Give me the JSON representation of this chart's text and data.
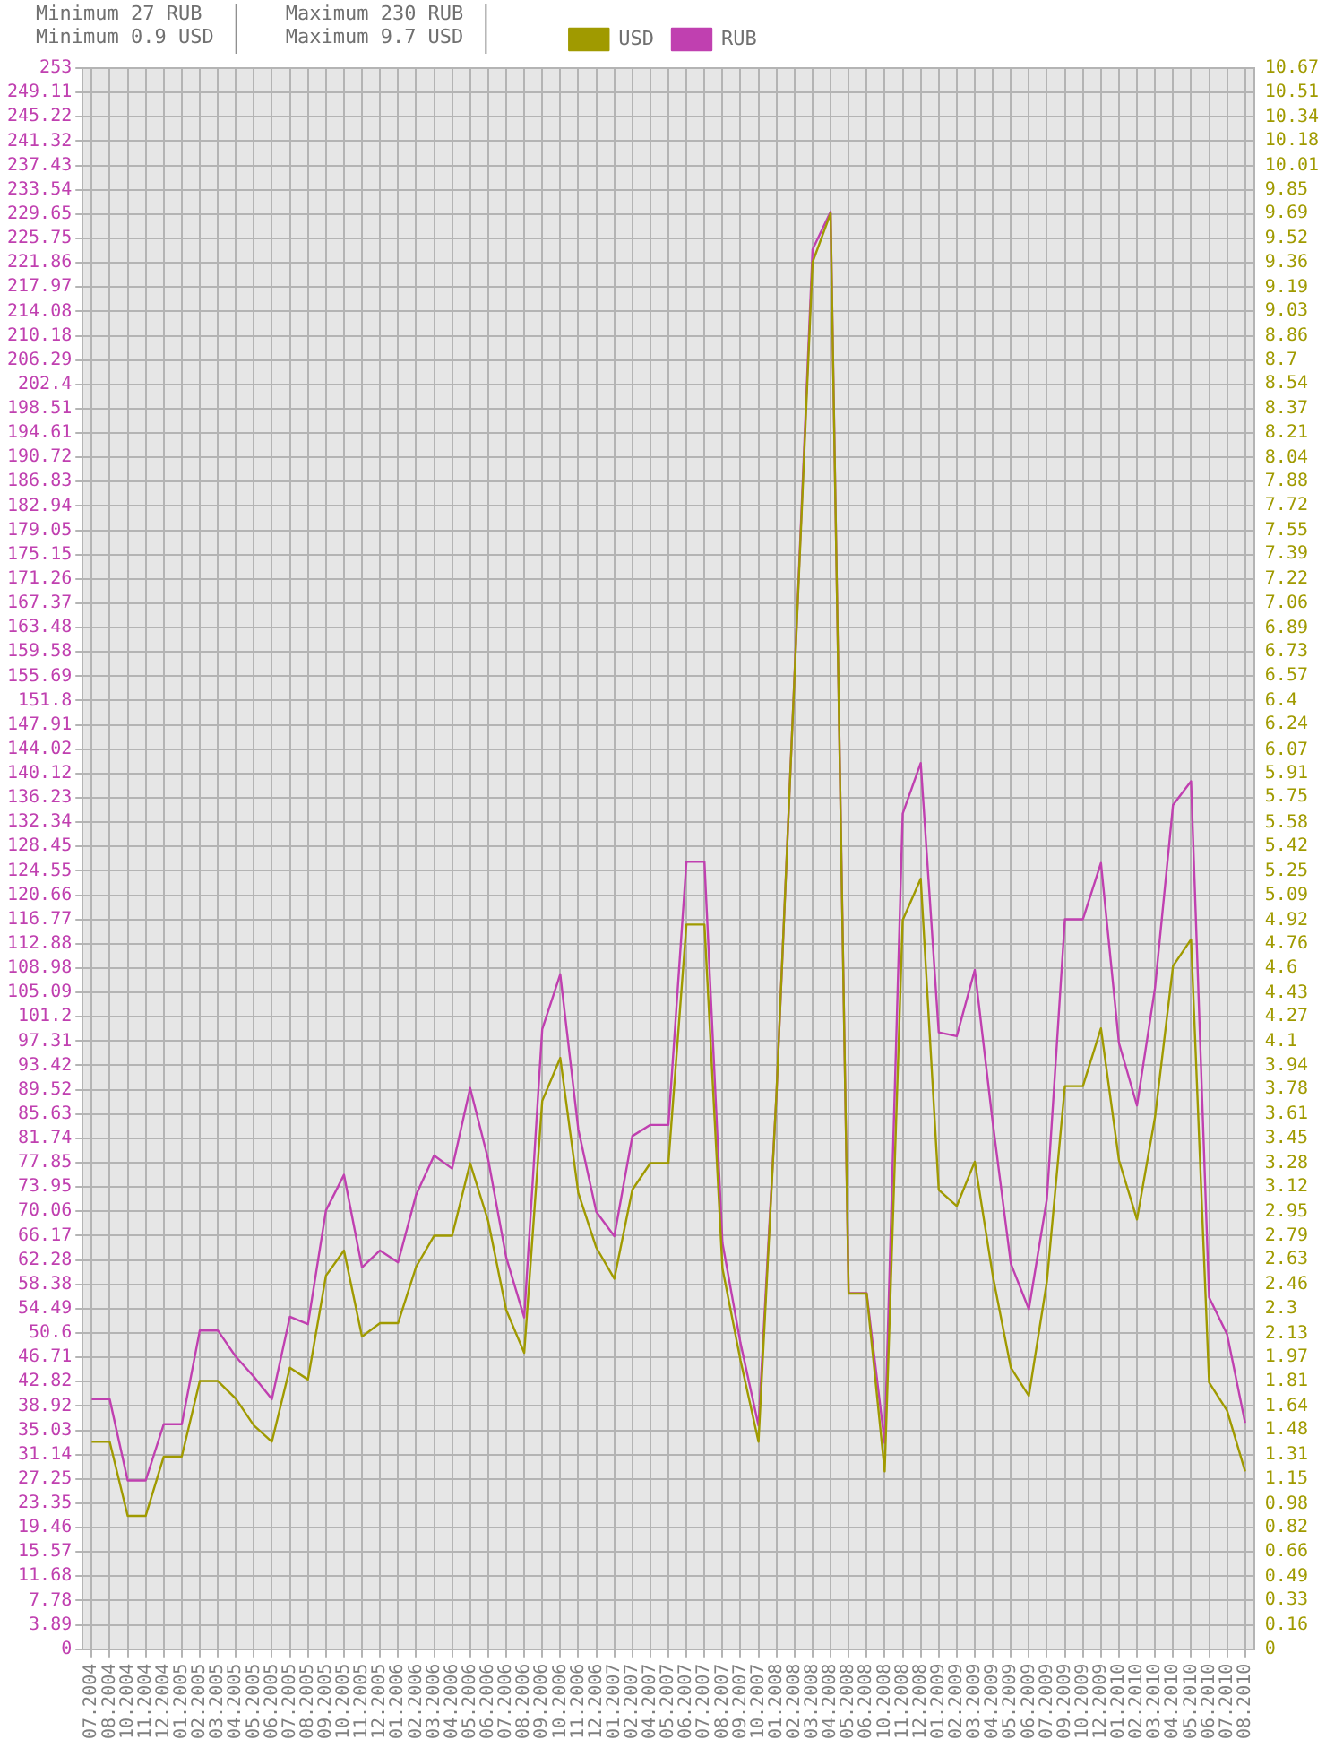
{
  "chart_data": {
    "type": "line",
    "annotations": [
      "Minimum 27 RUB",
      "Minimum 0.9 USD",
      "Maximum 230 RUB",
      "Maximum 9.7 USD"
    ],
    "categories": [
      "07.2004",
      "08.2004",
      "10.2004",
      "11.2004",
      "12.2004",
      "01.2005",
      "02.2005",
      "03.2005",
      "04.2005",
      "05.2005",
      "06.2005",
      "07.2005",
      "08.2005",
      "09.2005",
      "10.2005",
      "11.2005",
      "12.2005",
      "01.2006",
      "02.2006",
      "03.2006",
      "04.2006",
      "05.2006",
      "06.2006",
      "07.2006",
      "08.2006",
      "09.2006",
      "10.2006",
      "11.2006",
      "12.2006",
      "01.2007",
      "02.2007",
      "04.2007",
      "05.2007",
      "06.2007",
      "07.2007",
      "08.2007",
      "09.2007",
      "10.2007",
      "01.2008",
      "02.2008",
      "03.2008",
      "04.2008",
      "05.2008",
      "06.2008",
      "10.2008",
      "11.2008",
      "12.2008",
      "01.2009",
      "02.2009",
      "03.2009",
      "04.2009",
      "05.2009",
      "06.2009",
      "07.2009",
      "09.2009",
      "10.2009",
      "12.2009",
      "01.2010",
      "02.2010",
      "03.2010",
      "04.2010",
      "05.2010",
      "06.2010",
      "07.2010",
      "08.2010"
    ],
    "series": [
      {
        "name": "RUB",
        "color": "#c040b0",
        "values": [
          40,
          40,
          27,
          27,
          36,
          36,
          51,
          51,
          46.8,
          43.6,
          40,
          53.2,
          52,
          70.2,
          75.9,
          61.1,
          63.8,
          61.9,
          72.7,
          79,
          76.9,
          89.8,
          78.4,
          62.7,
          53.1,
          99.2,
          108,
          83.2,
          70,
          66.1,
          82.1,
          83.9,
          83.9,
          126,
          126,
          65,
          49,
          35.8,
          89,
          156,
          224,
          230,
          57,
          57,
          33,
          133.7,
          141.8,
          98.7,
          98.1,
          108.7,
          84.2,
          61.7,
          54.4,
          72,
          116.8,
          116.8,
          125.8,
          97,
          87,
          105.8,
          135.1,
          138.9,
          56.3,
          50.4,
          36.2
        ]
      },
      {
        "name": "USD",
        "color": "#a09a00",
        "axis": "y2",
        "values": [
          1.4,
          1.4,
          0.9,
          0.9,
          1.3,
          1.3,
          1.81,
          1.81,
          1.69,
          1.51,
          1.4,
          1.9,
          1.82,
          2.52,
          2.69,
          2.11,
          2.2,
          2.2,
          2.58,
          2.79,
          2.79,
          3.28,
          2.89,
          2.29,
          2,
          3.7,
          3.99,
          3.08,
          2.71,
          2.5,
          3.1,
          3.28,
          3.28,
          4.89,
          4.89,
          2.57,
          1.95,
          1.4,
          3.76,
          6.57,
          9.36,
          9.69,
          2.4,
          2.4,
          1.2,
          4.92,
          5.2,
          3.1,
          2.99,
          3.29,
          2.52,
          1.9,
          1.71,
          2.48,
          3.8,
          3.8,
          4.19,
          3.3,
          2.9,
          3.59,
          4.61,
          4.79,
          1.8,
          1.61,
          1.2
        ]
      }
    ],
    "ylim": [
      0,
      253
    ],
    "yticks": [
      0,
      3.89,
      7.78,
      11.68,
      15.57,
      19.46,
      23.35,
      27.25,
      31.14,
      35.03,
      38.92,
      42.82,
      46.71,
      50.6,
      54.49,
      58.38,
      62.28,
      66.17,
      70.06,
      73.95,
      77.85,
      81.74,
      85.63,
      89.52,
      93.42,
      97.31,
      101.2,
      105.09,
      108.98,
      112.88,
      116.77,
      120.66,
      124.55,
      128.45,
      132.34,
      136.23,
      140.12,
      144.02,
      147.91,
      151.8,
      155.69,
      159.58,
      163.48,
      167.37,
      171.26,
      175.15,
      179.05,
      182.94,
      186.83,
      190.72,
      194.61,
      198.51,
      202.4,
      206.29,
      210.18,
      214.08,
      217.97,
      221.86,
      225.75,
      229.65,
      233.54,
      237.43,
      241.32,
      245.22,
      249.11,
      253
    ],
    "y2lim": [
      0,
      10.67
    ],
    "y2ticks": [
      0,
      0.16,
      0.33,
      0.49,
      0.66,
      0.82,
      0.98,
      1.15,
      1.31,
      1.48,
      1.64,
      1.81,
      1.97,
      2.13,
      2.3,
      2.46,
      2.63,
      2.79,
      2.95,
      3.12,
      3.28,
      3.45,
      3.61,
      3.78,
      3.94,
      4.1,
      4.27,
      4.43,
      4.6,
      4.76,
      4.92,
      5.09,
      5.25,
      5.42,
      5.58,
      5.75,
      5.91,
      6.07,
      6.24,
      6.4,
      6.57,
      6.73,
      6.89,
      7.06,
      7.22,
      7.39,
      7.55,
      7.72,
      7.88,
      8.04,
      8.21,
      8.37,
      8.54,
      8.7,
      8.86,
      9.03,
      9.19,
      9.36,
      9.52,
      9.69,
      9.85,
      10.01,
      10.18,
      10.34,
      10.51,
      10.67
    ],
    "grid": true,
    "legend": "top",
    "marker": "none"
  }
}
